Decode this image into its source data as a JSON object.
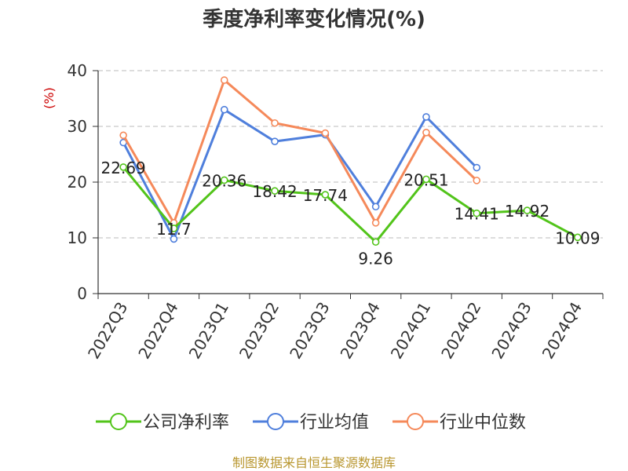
{
  "chart_data": {
    "type": "line",
    "title": "季度净利率变化情况(%)",
    "ylabel": "(%)",
    "xlabel": "",
    "categories": [
      "2022Q3",
      "2022Q4",
      "2023Q1",
      "2023Q2",
      "2023Q3",
      "2023Q4",
      "2024Q1",
      "2024Q2",
      "2024Q3",
      "2024Q4"
    ],
    "ylim": [
      0,
      40
    ],
    "yticks": [
      0,
      10,
      20,
      30,
      40
    ],
    "grid": true,
    "legend_position": "bottom",
    "series": [
      {
        "name": "公司净利率",
        "color": "#52c41a",
        "values": [
          22.69,
          11.7,
          20.36,
          18.42,
          17.74,
          9.26,
          20.51,
          14.41,
          14.92,
          10.09
        ],
        "labels": [
          "22.69",
          "11.7",
          "20.36",
          "18.42",
          "17.74",
          "9.26",
          "20.51",
          "14.41",
          "14.92",
          "10.09"
        ]
      },
      {
        "name": "行业均值",
        "color": "#4f7fdc",
        "values": [
          27.1,
          9.8,
          33.0,
          27.3,
          28.5,
          15.6,
          31.7,
          22.6,
          null,
          null
        ]
      },
      {
        "name": "行业中位数",
        "color": "#f5895a",
        "values": [
          28.4,
          12.7,
          38.3,
          30.6,
          28.8,
          12.7,
          28.9,
          20.3,
          null,
          null
        ]
      }
    ]
  },
  "source": "制图数据来自恒生聚源数据库"
}
